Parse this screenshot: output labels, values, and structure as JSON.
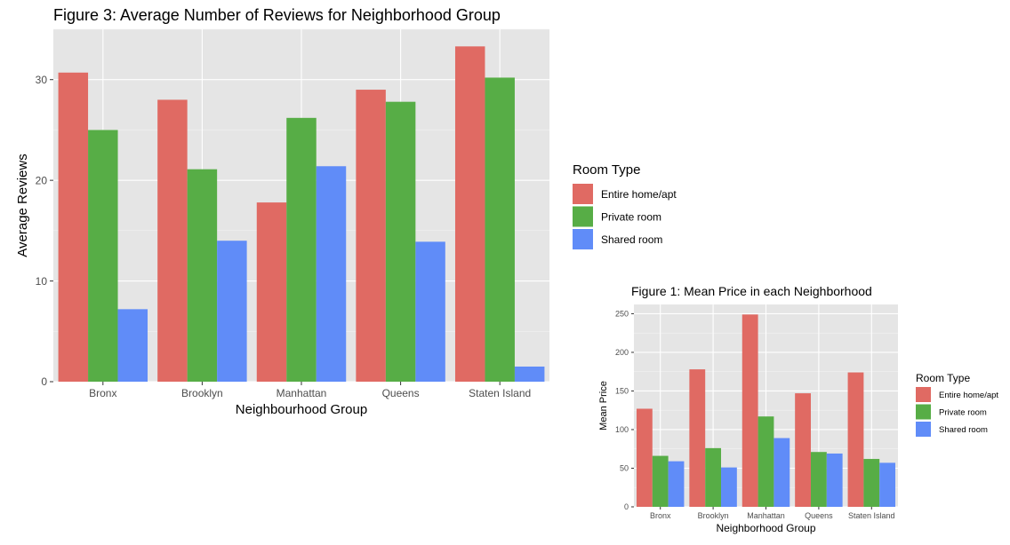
{
  "chart_data": [
    {
      "type": "bar",
      "title": "Figure 3: Average Number of Reviews for Neighborhood Group",
      "xlabel": "Neighbourhood Group",
      "ylabel": "Average Reviews",
      "categories": [
        "Bronx",
        "Brooklyn",
        "Manhattan",
        "Queens",
        "Staten Island"
      ],
      "series": [
        {
          "name": "Entire home/apt",
          "color": "#e06a63",
          "values": [
            30.7,
            28.0,
            17.8,
            29.0,
            33.3
          ]
        },
        {
          "name": "Private room",
          "color": "#57ad46",
          "values": [
            25.0,
            21.1,
            26.2,
            27.8,
            30.2
          ]
        },
        {
          "name": "Shared room",
          "color": "#608cf8",
          "values": [
            7.2,
            14.0,
            21.4,
            13.9,
            1.5
          ]
        }
      ],
      "ylim": [
        0,
        35
      ],
      "yticks": [
        0,
        10,
        20,
        30
      ],
      "legend_title": "Room Type",
      "legend_position": "right",
      "grid": true,
      "panel_background": "#e5e5e5"
    },
    {
      "type": "bar",
      "title": "Figure 1: Mean Price in each Neighborhood",
      "xlabel": "Neighborhood Group",
      "ylabel": "Mean Price",
      "categories": [
        "Bronx",
        "Brooklyn",
        "Manhattan",
        "Queens",
        "Staten Island"
      ],
      "series": [
        {
          "name": "Entire home/apt",
          "color": "#e06a63",
          "values": [
            127,
            178,
            249,
            147,
            174
          ]
        },
        {
          "name": "Private room",
          "color": "#57ad46",
          "values": [
            66,
            76,
            117,
            71,
            62
          ]
        },
        {
          "name": "Shared room",
          "color": "#608cf8",
          "values": [
            59,
            51,
            89,
            69,
            57
          ]
        }
      ],
      "ylim": [
        0,
        262
      ],
      "yticks": [
        0,
        50,
        100,
        150,
        200,
        250
      ],
      "legend_title": "Room Type",
      "legend_position": "right",
      "grid": true,
      "panel_background": "#e5e5e5"
    }
  ]
}
